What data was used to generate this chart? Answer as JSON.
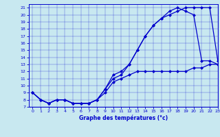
{
  "xlabel": "Graphe des températures (°c)",
  "xlim": [
    -0.5,
    23
  ],
  "ylim": [
    7,
    21.5
  ],
  "yticks": [
    7,
    8,
    9,
    10,
    11,
    12,
    13,
    14,
    15,
    16,
    17,
    18,
    19,
    20,
    21
  ],
  "xticks": [
    0,
    1,
    2,
    3,
    4,
    5,
    6,
    7,
    8,
    9,
    10,
    11,
    12,
    13,
    14,
    15,
    16,
    17,
    18,
    19,
    20,
    21,
    22,
    23
  ],
  "bg_color": "#c8e8f0",
  "line_color": "#0000cc",
  "line1_x": [
    0,
    1,
    2,
    3,
    4,
    5,
    6,
    7,
    8,
    9,
    10,
    11,
    12,
    13,
    14,
    15,
    16,
    17,
    18,
    19,
    20,
    21,
    22,
    23
  ],
  "line1_y": [
    9.0,
    8.0,
    7.5,
    8.0,
    8.0,
    7.5,
    7.5,
    7.5,
    8.0,
    9.5,
    11.0,
    11.5,
    13.0,
    15.0,
    17.0,
    18.5,
    19.5,
    20.0,
    20.5,
    21.0,
    21.0,
    21.0,
    21.0,
    13.5
  ],
  "line2_x": [
    0,
    1,
    2,
    3,
    4,
    5,
    6,
    7,
    8,
    9,
    10,
    11,
    12,
    13,
    14,
    15,
    16,
    17,
    18,
    19,
    20,
    21,
    22,
    23
  ],
  "line2_y": [
    9.0,
    8.0,
    7.5,
    8.0,
    8.0,
    7.5,
    7.5,
    7.5,
    8.0,
    9.5,
    11.5,
    12.0,
    13.0,
    15.0,
    17.0,
    18.5,
    19.5,
    20.5,
    21.0,
    20.5,
    20.0,
    13.5,
    13.5,
    13.0
  ],
  "line3_x": [
    0,
    1,
    2,
    3,
    4,
    5,
    6,
    7,
    8,
    9,
    10,
    11,
    12,
    13,
    14,
    15,
    16,
    17,
    18,
    19,
    20,
    21,
    22,
    23
  ],
  "line3_y": [
    9.0,
    8.0,
    7.5,
    8.0,
    8.0,
    7.5,
    7.5,
    7.5,
    8.0,
    9.0,
    10.5,
    11.0,
    11.5,
    12.0,
    12.0,
    12.0,
    12.0,
    12.0,
    12.0,
    12.0,
    12.5,
    12.5,
    13.0,
    13.0
  ]
}
